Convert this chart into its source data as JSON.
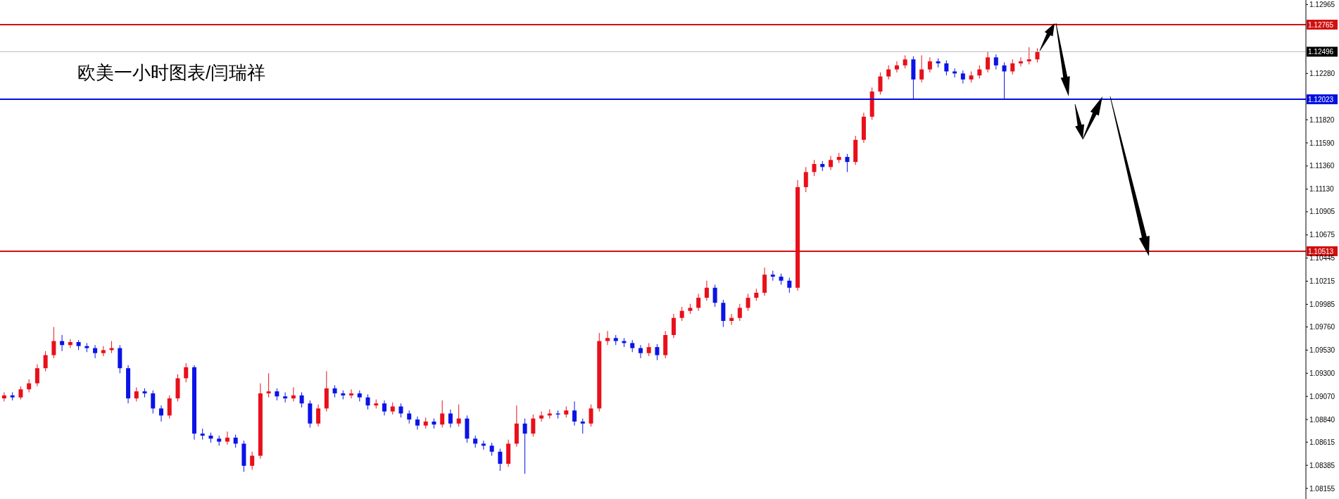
{
  "chart_data": {
    "type": "candlestick",
    "title": "欧美一小时图表/闫瑞祥",
    "colors": [
      "#e8101a",
      "#0a14e6",
      "#e8101a",
      "#e8101a",
      "#e8101a",
      "#e8101a",
      "#e8101a",
      "#0a14e6",
      "#e8101a",
      "#0a14e6",
      "#0a14e6",
      "#0a14e6",
      "#e8101a",
      "#e8101a",
      "#0a14e6",
      "#0a14e6",
      "#e8101a",
      "#0a14e6",
      "#0a14e6",
      "#0a14e6",
      "#e8101a",
      "#e8101a",
      "#e8101a",
      "#0a14e6",
      "#0a14e6",
      "#0a14e6",
      "#0a14e6",
      "#e8101a",
      "#0a14e6",
      "#0a14e6",
      "#e8101a",
      "#e8101a",
      "#e8101a",
      "#0a14e6",
      "#0a14e6",
      "#e8101a",
      "#0a14e6",
      "#0a14e6",
      "#e8101a",
      "#e8101a",
      "#0a14e6",
      "#0a14e6",
      "#e8101a",
      "#0a14e6",
      "#0a14e6",
      "#e8101a",
      "#0a14e6",
      "#e8101a",
      "#0a14e6",
      "#0a14e6",
      "#0a14e6",
      "#e8101a",
      "#0a14e6",
      "#e8101a",
      "#0a14e6",
      "#e8101a",
      "#0a14e6",
      "#0a14e6",
      "#0a14e6",
      "#0a14e6",
      "#0a14e6",
      "#e8101a",
      "#e8101a",
      "#0a14e6",
      "#e8101a",
      "#e8101a",
      "#e8101a",
      "#0a14e6",
      "#e8101a",
      "#0a14e6",
      "#0a14e6",
      "#e8101a",
      "#e8101a",
      "#e8101a",
      "#0a14e6",
      "#0a14e6",
      "#0a14e6",
      "#0a14e6",
      "#e8101a",
      "#0a14e6",
      "#e8101a",
      "#e8101a",
      "#e8101a",
      "#e8101a",
      "#e8101a",
      "#e8101a",
      "#0a14e6",
      "#0a14e6",
      "#e8101a",
      "#e8101a",
      "#e8101a",
      "#e8101a",
      "#e8101a",
      "#0a14e6",
      "#0a14e6",
      "#0a14e6",
      "#e8101a",
      "#e8101a",
      "#e8101a",
      "#0a14e6",
      "#e8101a",
      "#e8101a",
      "#0a14e6",
      "#e8101a",
      "#e8101a",
      "#e8101a",
      "#e8101a",
      "#e8101a",
      "#e8101a",
      "#e8101a",
      "#0a14e6",
      "#e8101a",
      "#e8101a",
      "#0a14e6",
      "#0a14e6",
      "#0a14e6",
      "#0a14e6",
      "#e8101a",
      "#e8101a",
      "#e8101a",
      "#0a14e6",
      "#0a14e6",
      "#e8101a",
      "#e8101a",
      "#e8101a",
      "#e8101a",
      null,
      null,
      null,
      null,
      null,
      null,
      null,
      null,
      null,
      null,
      null,
      null,
      null,
      null,
      null,
      null,
      null,
      null,
      null,
      null,
      null,
      null,
      null,
      null,
      null,
      null,
      null,
      null,
      null,
      null,
      null,
      null
    ],
    "ylim": [
      1.0805,
      1.1301
    ],
    "yticks": [
      1.12965,
      {
        "value": 1.1228,
        "label": "1.12280"
      },
      {
        "value": 1.1182,
        "label": "1.11820"
      },
      {
        "value": 1.1159,
        "label": "1.11590"
      },
      {
        "value": 1.1136,
        "label": "1.11360"
      },
      {
        "value": 1.1113,
        "label": "1.11130"
      },
      1.10905,
      1.10675,
      1.10445,
      1.10215,
      1.09985,
      {
        "value": 1.0976,
        "label": "1.09760"
      },
      {
        "value": 1.0953,
        "label": "1.09530"
      },
      {
        "value": 1.093,
        "label": "1.09300"
      },
      {
        "value": 1.0907,
        "label": "1.09070"
      },
      {
        "value": 1.0884,
        "label": "1.08840"
      },
      1.08615,
      1.08385,
      1.08155
    ],
    "tick_labels": "y",
    "ref_lines": [
      {
        "axis": "y",
        "value": 1.12765,
        "label": "1.12765",
        "color": "#d01010"
      },
      {
        "axis": "y",
        "value": 1.12496,
        "label": "1.12496",
        "color": "#c0c0c0"
      },
      {
        "axis": "y",
        "value": 1.12023,
        "label": "1.12023",
        "color": "#0010e0"
      },
      {
        "axis": "y",
        "value": 1.10513,
        "label": "1.10513",
        "color": "#d01010"
      }
    ],
    "categories": [
      null,
      null,
      null,
      null,
      null,
      null,
      null,
      null,
      null,
      null,
      null,
      null,
      null,
      null,
      null,
      null,
      null,
      null,
      null,
      null,
      null,
      null,
      null,
      null,
      null,
      null,
      null,
      null,
      null,
      null,
      null,
      null,
      null,
      null,
      null,
      null,
      null,
      null,
      null,
      null,
      null,
      null,
      null,
      null,
      null,
      null,
      null,
      null,
      null,
      null,
      null,
      null,
      null,
      null,
      null,
      null,
      null,
      null,
      null,
      null,
      null,
      null,
      null,
      null,
      null,
      null,
      null,
      null,
      null,
      null,
      null,
      null,
      null,
      null,
      null,
      null,
      null,
      null,
      null,
      null,
      null,
      null,
      null,
      null,
      null,
      null,
      null,
      null,
      null,
      null,
      null,
      null,
      null,
      null,
      null,
      null,
      null,
      null,
      null,
      null,
      null,
      null,
      null,
      null,
      null,
      null,
      null,
      null,
      null,
      null,
      null,
      null,
      null,
      null,
      null,
      null,
      null,
      null,
      null,
      null,
      null,
      null,
      null,
      null,
      null,
      null,
      null,
      null,
      null,
      null,
      null,
      null,
      null,
      null,
      null,
      null,
      null,
      null,
      null,
      null,
      null,
      null,
      null,
      null,
      null,
      null,
      null,
      null,
      null,
      null,
      null,
      null,
      null,
      null,
      null,
      null,
      null,
      null
    ],
    "ohlc": [
      [
        1.0905,
        1.0911,
        1.0902,
        1.0908
      ],
      [
        1.0908,
        1.0911,
        1.0903,
        1.0906
      ],
      [
        1.0906,
        1.0917,
        1.0904,
        1.0914
      ],
      [
        1.0914,
        1.0924,
        1.0911,
        1.092
      ],
      [
        1.092,
        1.0939,
        1.0917,
        1.0935
      ],
      [
        1.0935,
        1.0952,
        1.0932,
        1.0948
      ],
      [
        1.0948,
        1.0976,
        1.0945,
        1.0962
      ],
      [
        1.0962,
        1.0968,
        1.0952,
        1.0958
      ],
      [
        1.0958,
        1.0964,
        1.0955,
        1.0961
      ],
      [
        1.0961,
        1.0963,
        1.0953,
        1.0957
      ],
      [
        1.0957,
        1.096,
        1.0951,
        1.0955
      ],
      [
        1.0955,
        1.0958,
        1.0945,
        1.095
      ],
      [
        1.095,
        1.0957,
        1.0947,
        1.0953
      ],
      [
        1.0953,
        1.0962,
        1.095,
        1.0955
      ],
      [
        1.0955,
        1.0958,
        1.093,
        1.0935
      ],
      [
        1.0935,
        1.0938,
        1.09,
        1.0905
      ],
      [
        1.0905,
        1.0916,
        1.0902,
        1.0912
      ],
      [
        1.0912,
        1.0915,
        1.0906,
        1.091
      ],
      [
        1.091,
        1.0913,
        1.089,
        1.0895
      ],
      [
        1.0895,
        1.0898,
        1.0882,
        1.0888
      ],
      [
        1.0888,
        1.0908,
        1.0885,
        1.0905
      ],
      [
        1.0905,
        1.0929,
        1.0902,
        1.0925
      ],
      [
        1.0925,
        1.094,
        1.0921,
        1.0936
      ],
      [
        1.0936,
        1.0938,
        1.0864,
        1.087
      ],
      [
        1.087,
        1.0875,
        1.0864,
        1.0868
      ],
      [
        1.0868,
        1.0871,
        1.0861,
        1.0865
      ],
      [
        1.0865,
        1.0868,
        1.0858,
        1.0862
      ],
      [
        1.0862,
        1.0872,
        1.0859,
        1.0866
      ],
      [
        1.0866,
        1.0869,
        1.0856,
        1.086
      ],
      [
        1.086,
        1.0863,
        1.0832,
        1.0838
      ],
      [
        1.0838,
        1.0852,
        1.0834,
        1.0848
      ],
      [
        1.0848,
        1.092,
        1.0845,
        1.091
      ],
      [
        1.091,
        1.093,
        1.0906,
        1.0912
      ],
      [
        1.0912,
        1.0915,
        1.0903,
        1.0907
      ],
      [
        1.0907,
        1.0911,
        1.0901,
        1.0905
      ],
      [
        1.0905,
        1.0916,
        1.0902,
        1.0908
      ],
      [
        1.0908,
        1.0911,
        1.0896,
        1.09
      ],
      [
        1.09,
        1.0903,
        1.0876,
        1.088
      ],
      [
        1.088,
        1.0899,
        1.0877,
        1.0895
      ],
      [
        1.0895,
        1.0932,
        1.0892,
        1.0915
      ],
      [
        1.0915,
        1.0918,
        1.0906,
        1.091
      ],
      [
        1.091,
        1.0913,
        1.0904,
        1.0908
      ],
      [
        1.0908,
        1.0914,
        1.0905,
        1.091
      ],
      [
        1.091,
        1.0913,
        1.0902,
        1.0906
      ],
      [
        1.0906,
        1.0909,
        1.0894,
        1.0898
      ],
      [
        1.0898,
        1.0904,
        1.0895,
        1.09
      ],
      [
        1.09,
        1.0903,
        1.0888,
        1.0892
      ],
      [
        1.0892,
        1.0901,
        1.0889,
        1.0897
      ],
      [
        1.0897,
        1.09,
        1.0886,
        1.089
      ],
      [
        1.089,
        1.0893,
        1.088,
        1.0884
      ],
      [
        1.0884,
        1.0887,
        1.0874,
        1.0878
      ],
      [
        1.0878,
        1.0886,
        1.0875,
        1.0882
      ],
      [
        1.0882,
        1.0885,
        1.0875,
        1.0879
      ],
      [
        1.0879,
        1.0903,
        1.0876,
        1.089
      ],
      [
        1.089,
        1.0894,
        1.0876,
        1.088
      ],
      [
        1.088,
        1.0899,
        1.0877,
        1.0885
      ],
      [
        1.0885,
        1.0888,
        1.0861,
        1.0865
      ],
      [
        1.0865,
        1.0868,
        1.0856,
        1.086
      ],
      [
        1.086,
        1.0863,
        1.0854,
        1.0858
      ],
      [
        1.0858,
        1.0861,
        1.0848,
        1.0852
      ],
      [
        1.0852,
        1.0855,
        1.0833,
        1.084
      ],
      [
        1.084,
        1.0864,
        1.0837,
        1.086
      ],
      [
        1.086,
        1.0898,
        1.0857,
        1.088
      ],
      [
        1.088,
        1.0885,
        1.083,
        1.087
      ],
      [
        1.087,
        1.0889,
        1.0867,
        1.0885
      ],
      [
        1.0885,
        1.0892,
        1.0882,
        1.0888
      ],
      [
        1.0888,
        1.0894,
        1.0885,
        1.089
      ],
      [
        1.089,
        1.0893,
        1.0885,
        1.0889
      ],
      [
        1.0889,
        1.0897,
        1.0886,
        1.0893
      ],
      [
        1.0893,
        1.0902,
        1.0878,
        1.0882
      ],
      [
        1.0882,
        1.0885,
        1.087,
        1.088
      ],
      [
        1.088,
        1.0899,
        1.0877,
        1.0895
      ],
      [
        1.0895,
        1.097,
        1.0892,
        1.0962
      ],
      [
        1.0962,
        1.0972,
        1.0958,
        1.0965
      ],
      [
        1.0965,
        1.0968,
        1.0958,
        1.0962
      ],
      [
        1.0962,
        1.0965,
        1.0956,
        1.096
      ],
      [
        1.096,
        1.0963,
        1.0951,
        1.0955
      ],
      [
        1.0955,
        1.0958,
        1.0945,
        1.095
      ],
      [
        1.095,
        1.096,
        1.0947,
        1.0956
      ],
      [
        1.0956,
        1.0959,
        1.0943,
        1.0948
      ],
      [
        1.0948,
        1.0972,
        1.0945,
        1.0968
      ],
      [
        1.0968,
        1.0989,
        1.0965,
        1.0985
      ],
      [
        1.0985,
        1.0996,
        1.0982,
        1.0992
      ],
      [
        1.0992,
        1.0999,
        1.0989,
        1.0995
      ],
      [
        1.0995,
        1.1009,
        1.0992,
        1.1005
      ],
      [
        1.1005,
        1.1022,
        1.1002,
        1.1015
      ],
      [
        1.1015,
        1.1018,
        1.0996,
        1.1
      ],
      [
        1.1,
        1.1003,
        1.0976,
        1.0982
      ],
      [
        1.0982,
        1.0989,
        1.0978,
        1.0985
      ],
      [
        1.0985,
        1.0999,
        1.0982,
        1.0995
      ],
      [
        1.0995,
        1.1009,
        1.0992,
        1.1005
      ],
      [
        1.1005,
        1.1014,
        1.1002,
        1.101
      ],
      [
        1.101,
        1.1035,
        1.1007,
        1.1028
      ],
      [
        1.1028,
        1.1032,
        1.1022,
        1.1026
      ],
      [
        1.1026,
        1.1029,
        1.1018,
        1.1022
      ],
      [
        1.1022,
        1.1025,
        1.101,
        1.1015
      ],
      [
        1.1015,
        1.1122,
        1.1012,
        1.1115
      ],
      [
        1.1115,
        1.1135,
        1.111,
        1.113
      ],
      [
        1.113,
        1.1142,
        1.1126,
        1.1138
      ],
      [
        1.1138,
        1.1141,
        1.1131,
        1.1135
      ],
      [
        1.1135,
        1.1146,
        1.1132,
        1.1142
      ],
      [
        1.1142,
        1.1149,
        1.1139,
        1.1145
      ],
      [
        1.1145,
        1.1148,
        1.113,
        1.114
      ],
      [
        1.114,
        1.1166,
        1.1137,
        1.1162
      ],
      [
        1.1162,
        1.1189,
        1.1159,
        1.1185
      ],
      [
        1.1185,
        1.1214,
        1.1182,
        1.121
      ],
      [
        1.121,
        1.1229,
        1.1207,
        1.1225
      ],
      [
        1.1225,
        1.1236,
        1.1222,
        1.1232
      ],
      [
        1.1232,
        1.124,
        1.1229,
        1.1236
      ],
      [
        1.1236,
        1.1246,
        1.1233,
        1.1242
      ],
      [
        1.1242,
        1.1245,
        1.1203,
        1.1222
      ],
      [
        1.1222,
        1.1246,
        1.1219,
        1.1232
      ],
      [
        1.1232,
        1.1244,
        1.1229,
        1.124
      ],
      [
        1.124,
        1.1243,
        1.1234,
        1.1238
      ],
      [
        1.1238,
        1.1241,
        1.1226,
        1.123
      ],
      [
        1.123,
        1.1233,
        1.1224,
        1.1228
      ],
      [
        1.1228,
        1.1231,
        1.1218,
        1.1222
      ],
      [
        1.1222,
        1.123,
        1.1219,
        1.1226
      ],
      [
        1.1226,
        1.1236,
        1.1223,
        1.1232
      ],
      [
        1.1232,
        1.125,
        1.1229,
        1.1244
      ],
      [
        1.1244,
        1.1247,
        1.1232,
        1.1236
      ],
      [
        1.1236,
        1.1239,
        1.1202,
        1.123
      ],
      [
        1.123,
        1.1242,
        1.1227,
        1.1238
      ],
      [
        1.1238,
        1.1244,
        1.1235,
        1.124
      ],
      [
        1.124,
        1.1254,
        1.1237,
        1.1242
      ],
      [
        1.1242,
        1.1253,
        1.1239,
        1.125
      ],
      null,
      null,
      null,
      null,
      null,
      null,
      null,
      null,
      null,
      null,
      null,
      null,
      null,
      null,
      null,
      null,
      null,
      null,
      null,
      null,
      null,
      null,
      null,
      null,
      null,
      null,
      null,
      null,
      null,
      null,
      null,
      null
    ]
  }
}
